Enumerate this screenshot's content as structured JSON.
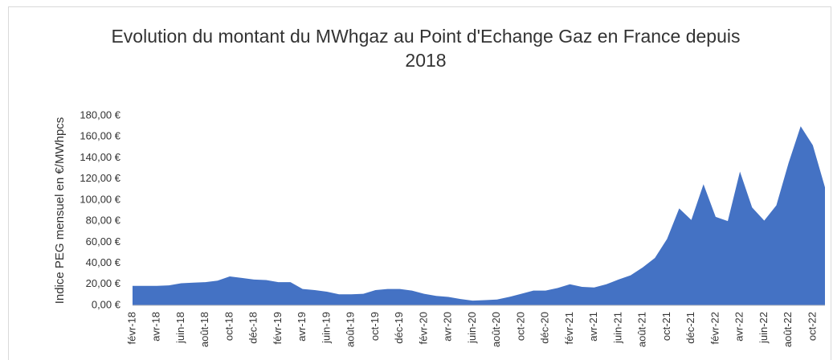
{
  "chart_data": {
    "type": "area",
    "title": "Evolution du montant du MWhgaz au Point d'Echange Gaz en France depuis 2018",
    "y_label": "Indice PEG mensuel en €/MWhpcs",
    "categories": [
      "févr-18",
      null,
      "avr-18",
      null,
      "juin-18",
      null,
      "août-18",
      null,
      "oct-18",
      null,
      "déc-18",
      null,
      "févr-19",
      null,
      "avr-19",
      null,
      "juin-19",
      null,
      "août-19",
      null,
      "oct-19",
      null,
      "déc-19",
      null,
      "févr-20",
      null,
      "avr-20",
      null,
      "juin-20",
      null,
      "août-20",
      null,
      "oct-20",
      null,
      "déc-20",
      null,
      "févr-21",
      null,
      "avr-21",
      null,
      "juin-21",
      null,
      "août-21",
      null,
      "oct-21",
      null,
      "déc-21",
      null,
      "févr-22",
      null,
      "avr-22",
      null,
      "juin-22",
      null,
      "août-22",
      null,
      "oct-22",
      null
    ],
    "values": [
      18.5,
      18.5,
      18.5,
      19,
      21,
      21.5,
      22,
      23.5,
      27.5,
      26,
      24.5,
      24,
      22,
      22,
      15.5,
      14.5,
      13,
      10.5,
      10.5,
      11,
      14.5,
      15.5,
      15.5,
      14,
      11,
      9,
      8,
      6,
      4.5,
      5,
      5.5,
      8,
      11,
      14,
      14,
      16.5,
      20,
      17.5,
      17,
      20,
      24.5,
      28.5,
      36,
      45,
      63,
      92,
      81,
      115,
      84,
      80,
      127,
      93,
      80.5,
      95,
      135,
      170,
      152,
      112
    ],
    "color": "#4472c4",
    "ylim": [
      0,
      180
    ],
    "yticks": [
      {
        "value": 0,
        "label": "0,00 €"
      },
      {
        "value": 20,
        "label": "20,00 €"
      },
      {
        "value": 40,
        "label": "40,00 €"
      },
      {
        "value": 60,
        "label": "60,00 €"
      },
      {
        "value": 80,
        "label": "80,00 €"
      },
      {
        "value": 100,
        "label": "100,00 €"
      },
      {
        "value": 120,
        "label": "120,00 €"
      },
      {
        "value": 140,
        "label": "140,00 €"
      },
      {
        "value": 160,
        "label": "160,00 €"
      },
      {
        "value": 180,
        "label": "180,00 €"
      }
    ],
    "grid": false
  }
}
